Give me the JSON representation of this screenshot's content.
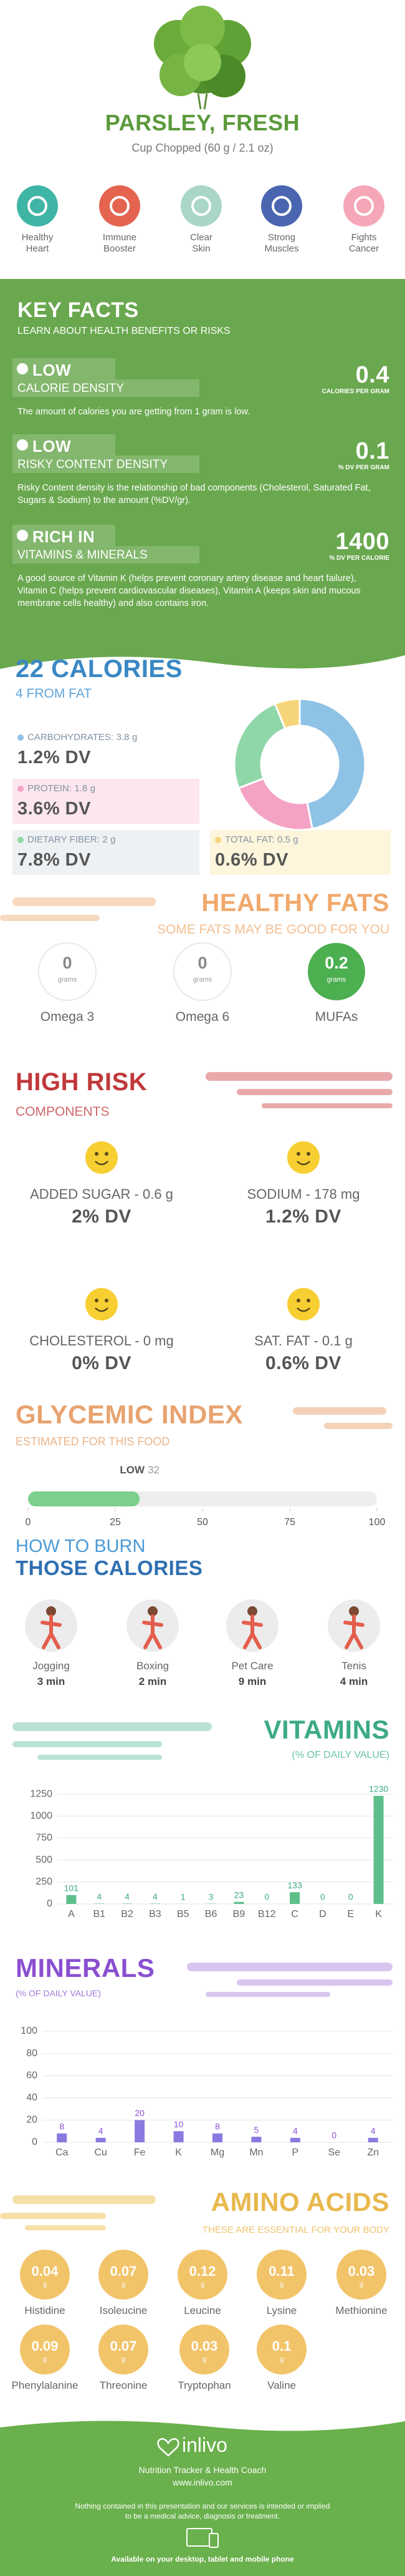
{
  "header": {
    "title": "PARSLEY, FRESH",
    "subtitle": "Cup Chopped (60 g / 2.1 oz)"
  },
  "benefits": [
    "Healthy Heart",
    "Immune Booster",
    "Clear Skin",
    "Strong Muscles",
    "Fights Cancer"
  ],
  "key_facts": {
    "title": "KEY FACTS",
    "subtitle": "LEARN ABOUT HEALTH BENEFITS OR RISKS",
    "items": [
      {
        "level": "LOW",
        "name": "CALORIE DENSITY",
        "value": 0.4,
        "unit": "CALORIES PER GRAM",
        "description": "The amount of calories you are getting from 1 gram is low."
      },
      {
        "level": "LOW",
        "name": "RISKY CONTENT DENSITY",
        "value": 0.1,
        "unit": "% DV PER GRAM",
        "description": "Risky Content density is the relationship of bad components (Cholesterol, Saturated Fat, Sugars & Sodium) to the amount (%DV/gr)."
      },
      {
        "level": "RICH IN",
        "name": "VITAMINS & MINERALS",
        "value": 1400,
        "unit": "% DV PER CALORIE",
        "description": "A good source of Vitamin K (helps prevent coronary artery disease and heart failure), Vitamin C (helps prevent cardiovascular diseases), Vitamin A (keeps skin and mucous membrane cells healthy) and also contains iron."
      }
    ]
  },
  "chart_data": [
    {
      "type": "pie",
      "title": "22 CALORIES",
      "subtitle": "4 FROM FAT",
      "categories": [
        "CARBOHYDRATES:",
        "PROTEIN:",
        "DIETARY FIBER:",
        "TOTAL FAT:"
      ],
      "values": [
        3.8,
        1.8,
        2,
        0.5
      ],
      "unit": "g",
      "dv": [
        "1.2% DV",
        "3.6% DV",
        "7.8% DV",
        "0.6% DV"
      ],
      "colors": [
        "#8fc3e6",
        "#f5a3c4",
        "#8fd6a8",
        "#f6d57a"
      ]
    },
    {
      "type": "gauge",
      "title": "GLYCEMIC INDEX",
      "subtitle": "ESTIMATED FOR THIS FOOD",
      "level": "LOW",
      "value": 32,
      "xlim": [
        0,
        100
      ],
      "xticks": [
        0,
        25,
        50,
        75,
        100
      ],
      "color": "#7ccf8c"
    },
    {
      "type": "bar",
      "title": "VITAMINS",
      "subtitle": "(% OF DAILY VALUE)",
      "categories": [
        "A",
        "B1",
        "B2",
        "B3",
        "B5",
        "B6",
        "B9",
        "B12",
        "C",
        "D",
        "E",
        "K"
      ],
      "values": [
        101,
        4,
        4,
        4,
        1,
        3,
        23,
        0,
        133,
        0,
        0,
        1230
      ],
      "ylim": [
        0,
        1300
      ],
      "yticks": [
        0,
        250,
        500,
        750,
        1000,
        1250
      ],
      "color": "#5cbf8a",
      "grid": true
    },
    {
      "type": "bar",
      "title": "MINERALS",
      "subtitle": "(% OF DAILY VALUE)",
      "categories": [
        "Ca",
        "Cu",
        "Fe",
        "K",
        "Mg",
        "Mn",
        "P",
        "Se",
        "Zn"
      ],
      "values": [
        8,
        4,
        20,
        10,
        8,
        5,
        4,
        0,
        4
      ],
      "ylim": [
        0,
        100
      ],
      "yticks": [
        0,
        20,
        40,
        60,
        80,
        100
      ],
      "color": "#8a7ae0",
      "grid": true
    }
  ],
  "healthy_fats": {
    "title": "HEALTHY FATS",
    "subtitle": "SOME FATS MAY BE GOOD FOR YOU",
    "unit": "grams",
    "items": [
      {
        "name": "Omega 3",
        "value": 0
      },
      {
        "name": "Omega 6",
        "value": 0
      },
      {
        "name": "MUFAs",
        "value": 0.2
      }
    ],
    "colors": [
      "#ffffff",
      "#ffffff",
      "#4caf50"
    ]
  },
  "high_risk": {
    "title": "HIGH RISK",
    "subtitle": "COMPONENTS",
    "items": [
      {
        "label": "ADDED SUGAR - 0.6 g",
        "dv": "2% DV"
      },
      {
        "label": "SODIUM - 178 mg",
        "dv": "1.2% DV"
      },
      {
        "label": "CHOLESTEROL - 0 mg",
        "dv": "0% DV"
      },
      {
        "label": "SAT. FAT - 0.1 g",
        "dv": "0.6% DV"
      }
    ]
  },
  "burn": {
    "title": "HOW TO BURN",
    "title2": "THOSE CALORIES",
    "activities": [
      {
        "name": "Jogging",
        "time": "3 min"
      },
      {
        "name": "Boxing",
        "time": "2 min"
      },
      {
        "name": "Pet Care",
        "time": "9 min"
      },
      {
        "name": "Tenis",
        "time": "4 min"
      }
    ]
  },
  "amino_acids": {
    "title": "AMINO ACIDS",
    "subtitle": "THESE ARE ESSENTIAL FOR YOUR BODY",
    "unit": "g",
    "color": "#f2c46a",
    "items": [
      {
        "name": "Histidine",
        "value": 0.04
      },
      {
        "name": "Isoleucine",
        "value": 0.07
      },
      {
        "name": "Leucine",
        "value": 0.12
      },
      {
        "name": "Lysine",
        "value": 0.11
      },
      {
        "name": "Methionine",
        "value": 0.03
      },
      {
        "name": "Phenylalanine",
        "value": 0.09
      },
      {
        "name": "Threonine",
        "value": 0.07
      },
      {
        "name": "Tryptophan",
        "value": 0.03
      },
      {
        "name": "Valine",
        "value": 0.1
      }
    ]
  },
  "footer": {
    "brand": "inlivo",
    "tagline": "Nutrition Tracker & Health Coach",
    "url": "www.inlivo.com",
    "disclaimer": "Nothing contained in this presentation and our services is intended or implied to be a medical advice, diagnosis or treatment.",
    "availability": "Available on your desktop, tablet and mobile phone"
  }
}
